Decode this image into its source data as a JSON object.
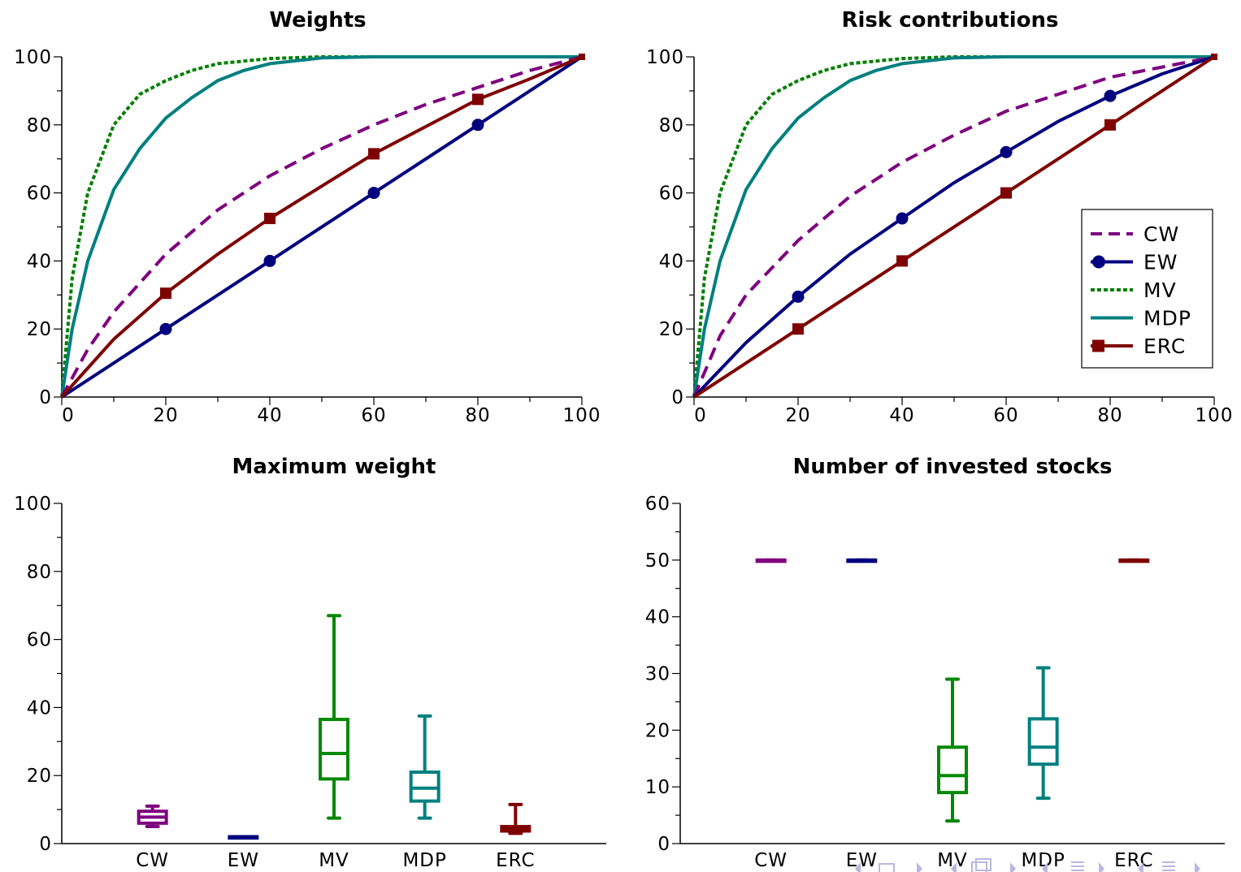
{
  "colors": {
    "CW": "#7f007f",
    "EW": "#00007f",
    "MV": "#007f00",
    "MV_box": "#008800",
    "MDP": "#007f7f",
    "ERC": "#7f0000",
    "nav": "#b8b8e0"
  },
  "chart_data": [
    {
      "type": "line",
      "title": "Weights",
      "xlim": [
        0,
        100
      ],
      "ylim": [
        0,
        100
      ],
      "xticks": [
        0,
        20,
        40,
        60,
        80,
        100
      ],
      "yticks": [
        0,
        20,
        40,
        60,
        80,
        100
      ],
      "x_minor_step": 10,
      "y_minor_step": 10,
      "series": [
        {
          "name": "CW",
          "style": "dashed",
          "x": [
            0,
            5,
            10,
            20,
            30,
            40,
            50,
            60,
            70,
            80,
            90,
            100
          ],
          "y": [
            0,
            14,
            25,
            42,
            55,
            65,
            73,
            80,
            86,
            91,
            96,
            100
          ]
        },
        {
          "name": "EW",
          "style": "solid-circle",
          "x": [
            0,
            20,
            40,
            60,
            80,
            100
          ],
          "y": [
            0,
            20,
            40,
            60,
            80,
            100
          ]
        },
        {
          "name": "MV",
          "style": "dotted",
          "x": [
            0,
            2,
            5,
            10,
            15,
            20,
            25,
            30,
            40,
            50,
            60,
            80,
            100
          ],
          "y": [
            0,
            35,
            60,
            80,
            89,
            93,
            96,
            98,
            99.5,
            100,
            100,
            100,
            100
          ]
        },
        {
          "name": "MDP",
          "style": "solid",
          "x": [
            0,
            2,
            5,
            10,
            15,
            20,
            25,
            30,
            35,
            40,
            50,
            60,
            80,
            100
          ],
          "y": [
            0,
            20,
            40,
            61,
            73,
            82,
            88,
            93,
            96,
            98,
            99.7,
            100,
            100,
            100
          ]
        },
        {
          "name": "ERC",
          "style": "solid-square",
          "x": [
            0,
            10,
            20,
            30,
            40,
            50,
            60,
            70,
            80,
            90,
            100
          ],
          "y": [
            0,
            17,
            30.5,
            42,
            52.5,
            62,
            71.5,
            79.5,
            87.5,
            93.5,
            100
          ]
        }
      ]
    },
    {
      "type": "line",
      "title": "Risk contributions",
      "xlim": [
        0,
        100
      ],
      "ylim": [
        0,
        100
      ],
      "xticks": [
        0,
        20,
        40,
        60,
        80,
        100
      ],
      "yticks": [
        0,
        20,
        40,
        60,
        80,
        100
      ],
      "x_minor_step": 10,
      "y_minor_step": 10,
      "legend_position": "center-right",
      "series": [
        {
          "name": "CW",
          "style": "dashed",
          "x": [
            0,
            5,
            10,
            20,
            30,
            40,
            50,
            60,
            70,
            80,
            90,
            100
          ],
          "y": [
            0,
            18,
            30,
            46,
            59,
            69,
            77,
            84,
            89,
            94,
            97,
            100
          ]
        },
        {
          "name": "EW",
          "style": "solid-circle",
          "x": [
            0,
            10,
            20,
            30,
            40,
            50,
            60,
            70,
            80,
            90,
            100
          ],
          "y": [
            0,
            16,
            29.5,
            42,
            52.5,
            63,
            72,
            81,
            88.5,
            95,
            100
          ]
        },
        {
          "name": "MV",
          "style": "dotted",
          "x": [
            0,
            2,
            5,
            10,
            15,
            20,
            25,
            30,
            40,
            50,
            60,
            80,
            100
          ],
          "y": [
            0,
            35,
            60,
            80,
            89,
            93,
            96,
            98,
            99.5,
            100,
            100,
            100,
            100
          ]
        },
        {
          "name": "MDP",
          "style": "solid",
          "x": [
            0,
            2,
            5,
            10,
            15,
            20,
            25,
            30,
            35,
            40,
            50,
            60,
            80,
            100
          ],
          "y": [
            0,
            20,
            40,
            61,
            73,
            82,
            88,
            93,
            96,
            98,
            99.7,
            100,
            100,
            100
          ]
        },
        {
          "name": "ERC",
          "style": "solid-square",
          "x": [
            0,
            20,
            40,
            60,
            80,
            100
          ],
          "y": [
            0,
            20,
            40,
            60,
            80,
            100
          ]
        }
      ],
      "legend": [
        "CW",
        "EW",
        "MV",
        "MDP",
        "ERC"
      ]
    },
    {
      "type": "box",
      "title": "Maximum weight",
      "ylim": [
        0,
        100
      ],
      "yticks": [
        0,
        20,
        40,
        60,
        80,
        100
      ],
      "y_minor_step": 10,
      "categories": [
        "CW",
        "EW",
        "MV",
        "MDP",
        "ERC"
      ],
      "boxes": [
        {
          "name": "CW",
          "min": 5,
          "q1": 6,
          "median": 7.8,
          "q3": 9.5,
          "max": 11
        },
        {
          "name": "EW",
          "min": 2,
          "q1": 2,
          "median": 2,
          "q3": 2,
          "max": 2
        },
        {
          "name": "MV",
          "min": 7.5,
          "q1": 19,
          "median": 26.5,
          "q3": 36.5,
          "max": 67
        },
        {
          "name": "MDP",
          "min": 7.5,
          "q1": 12.5,
          "median": 16.3,
          "q3": 21,
          "max": 37.5
        },
        {
          "name": "ERC",
          "min": 3,
          "q1": 3.7,
          "median": 4.2,
          "q3": 5,
          "max": 11.5
        }
      ]
    },
    {
      "type": "box",
      "title": "Number of invested stocks",
      "ylim": [
        0,
        60
      ],
      "yticks": [
        0,
        10,
        20,
        30,
        40,
        50,
        60
      ],
      "y_minor_step": 5,
      "categories": [
        "CW",
        "EW",
        "MV",
        "MDP",
        "ERC"
      ],
      "boxes": [
        {
          "name": "CW",
          "min": 50,
          "q1": 50,
          "median": 50,
          "q3": 50,
          "max": 50
        },
        {
          "name": "EW",
          "min": 50,
          "q1": 50,
          "median": 50,
          "q3": 50,
          "max": 50
        },
        {
          "name": "MV",
          "min": 4,
          "q1": 9,
          "median": 12,
          "q3": 17,
          "max": 29
        },
        {
          "name": "MDP",
          "min": 8,
          "q1": 14,
          "median": 17,
          "q3": 22,
          "max": 31
        },
        {
          "name": "ERC",
          "min": 50,
          "q1": 50,
          "median": 50,
          "q3": 50,
          "max": 50
        }
      ]
    }
  ]
}
